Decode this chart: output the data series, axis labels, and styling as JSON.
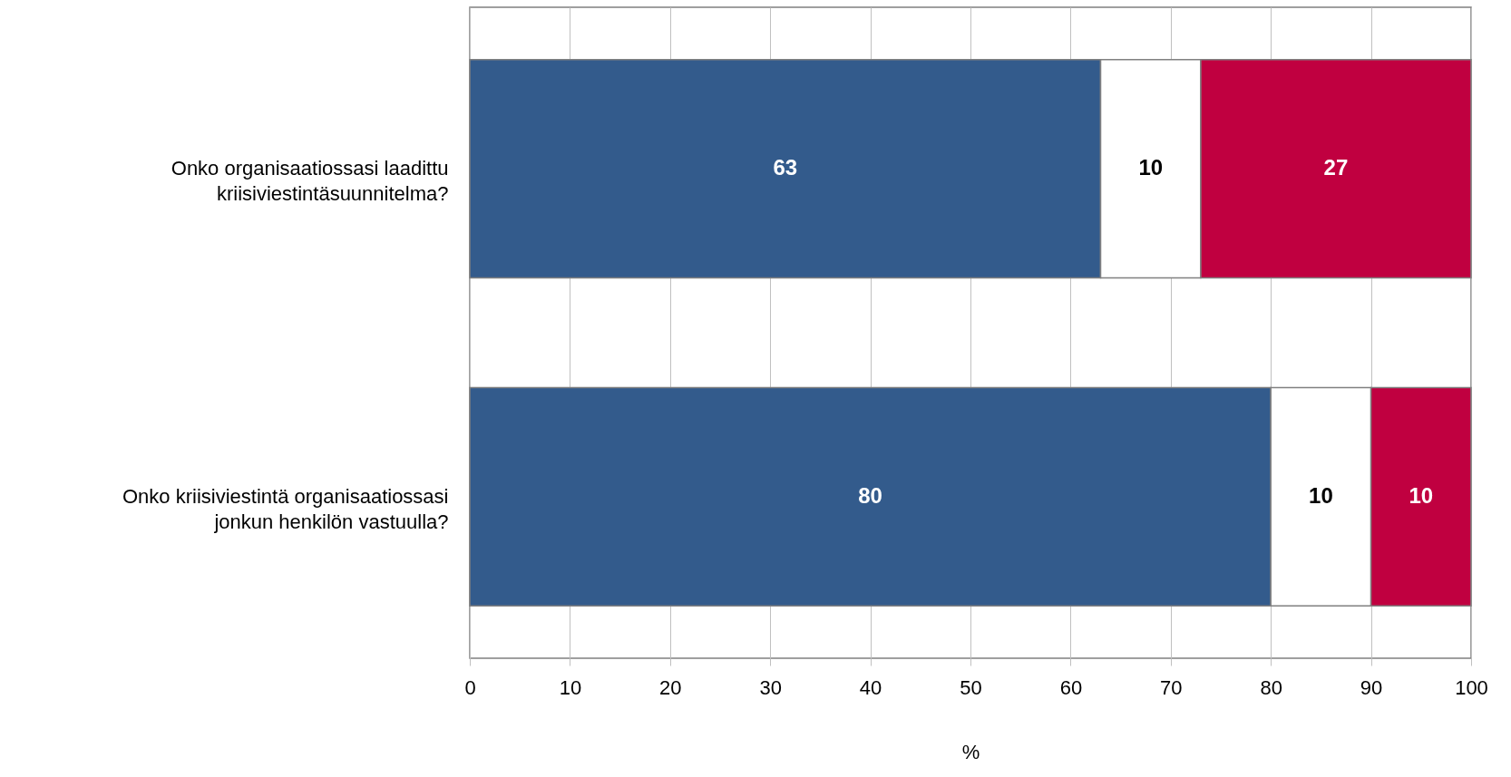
{
  "chart_data": {
    "type": "bar",
    "orientation": "horizontal",
    "stacked": true,
    "xlabel": "%",
    "categories": [
      "Onko organisaatiossasi laadittu kriisiviestintäsuunnitelma?",
      "Onko kriisiviestintä organisaatiossasi jonkun henkilön vastuulla?"
    ],
    "series": [
      {
        "color": "#335b8c",
        "values": [
          63,
          80
        ]
      },
      {
        "color": "#ffffff",
        "values": [
          10,
          10
        ]
      },
      {
        "color": "#c00040",
        "values": [
          27,
          10
        ]
      }
    ],
    "xlim": [
      0,
      100
    ],
    "xticks": [
      0,
      10,
      20,
      30,
      40,
      50,
      60,
      70,
      80,
      90,
      100
    ],
    "grid": "x",
    "data_labels": true
  }
}
